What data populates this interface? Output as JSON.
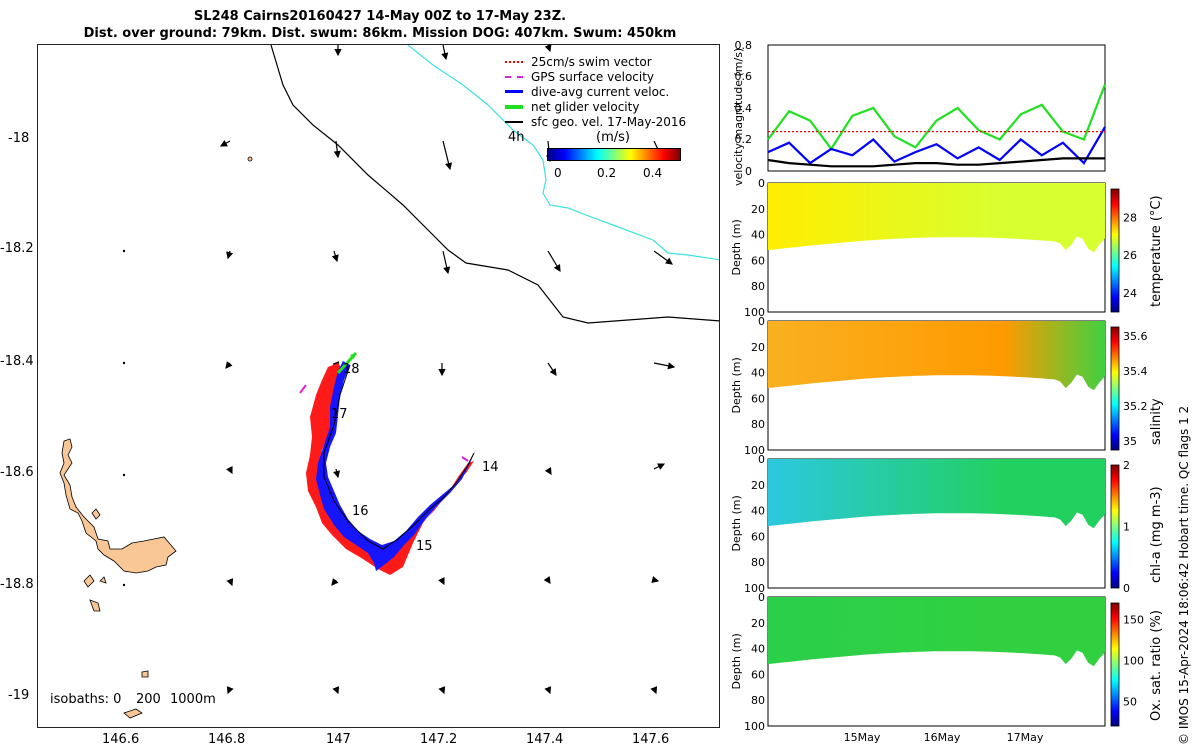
{
  "header": {
    "line1": "SL248 Cairns20160427 14-May 00Z to 17-May 23Z.",
    "line2": "Dist. over ground: 79km. Dist. swum: 86km. Mission DOG: 407km. Swum: 450km"
  },
  "map": {
    "lat_ticks": [
      "-18",
      "-18.2",
      "-18.4",
      "-18.6",
      "-18.8",
      "-19"
    ],
    "lon_ticks": [
      "146.6",
      "146.8",
      "147",
      "147.2",
      "147.4",
      "147.6"
    ],
    "isobaths_label": "isobaths: 0",
    "isobaths_200": "200",
    "isobaths_1000": "1000m",
    "time_4h": "4h",
    "day_labels": [
      "18",
      "17",
      "14",
      "16",
      "15"
    ],
    "legend": {
      "swim": "25cm/s swim vector",
      "gps": "GPS surface velocity",
      "dive": "dive-avg current veloc.",
      "net": "net glider velocity",
      "sfc": "sfc geo. vel. 17-May-2016"
    },
    "cbar_title": "(m/s)",
    "cbar_ticks": [
      "0",
      "0.2",
      "0.4"
    ],
    "colors": {
      "land": "#f9c796",
      "shelf": "#000000",
      "contour": "#3ee0e0",
      "dive": "#0000ff",
      "swim": "#ff0000",
      "gps": "#e020e0",
      "net": "#20e020"
    }
  },
  "panels": {
    "velocity_ylabel": "velocity magnitude (m/s)",
    "velocity_ticks": [
      "0",
      "0.2",
      "0.4",
      "0.6",
      "0.8"
    ],
    "depth_ylabel": "Depth (m)",
    "depth_ticks": [
      "0",
      "20",
      "40",
      "60",
      "80",
      "100"
    ],
    "temperature": {
      "label": "temperature (°C)",
      "ticks": [
        "24",
        "26",
        "28"
      ]
    },
    "salinity": {
      "label": "salinity",
      "ticks": [
        "35",
        "35.2",
        "35.4",
        "35.6"
      ]
    },
    "chla": {
      "label": "chl-a (mg m-3)",
      "ticks": [
        "0",
        "1",
        "2"
      ]
    },
    "oxygen": {
      "label": "Ox. sat. ratio (%)",
      "ticks": [
        "50",
        "100",
        "150"
      ]
    },
    "date_ticks": [
      "15May",
      "16May",
      "17May"
    ],
    "imos_footer": "© IMOS 15-Apr-2024 18:06:42 Hobart time. QC flags 1  2"
  },
  "chart_data": [
    {
      "type": "line",
      "ylabel": "velocity magnitude (m/s)",
      "ylim": [
        0,
        0.8
      ],
      "x": [
        0,
        0.25,
        0.5,
        0.75,
        1,
        1.25,
        1.5,
        1.75,
        2,
        2.25,
        2.5,
        2.75,
        3,
        3.25,
        3.5,
        3.75,
        4
      ],
      "series": [
        {
          "name": "net glider velocity",
          "color": "#20e020",
          "values": [
            0.2,
            0.38,
            0.32,
            0.14,
            0.35,
            0.4,
            0.22,
            0.15,
            0.32,
            0.4,
            0.26,
            0.2,
            0.36,
            0.42,
            0.25,
            0.2,
            0.55
          ]
        },
        {
          "name": "dive-avg current veloc.",
          "color": "#0000ff",
          "values": [
            0.12,
            0.18,
            0.05,
            0.14,
            0.1,
            0.2,
            0.06,
            0.12,
            0.17,
            0.08,
            0.15,
            0.07,
            0.2,
            0.1,
            0.18,
            0.05,
            0.28
          ]
        },
        {
          "name": "25cm/s swim vector",
          "color": "#ff0000",
          "values": [
            0.25,
            0.25,
            0.25,
            0.25,
            0.25,
            0.25,
            0.25,
            0.25,
            0.25,
            0.25,
            0.25,
            0.25,
            0.25,
            0.25,
            0.25,
            0.25,
            0.25
          ]
        },
        {
          "name": "sfc geo. vel. 17-May-2016",
          "color": "#000000",
          "values": [
            0.07,
            0.05,
            0.04,
            0.03,
            0.03,
            0.03,
            0.04,
            0.05,
            0.05,
            0.04,
            0.04,
            0.05,
            0.06,
            0.07,
            0.08,
            0.08,
            0.08
          ]
        }
      ]
    },
    {
      "type": "heatmap",
      "label": "temperature (°C)",
      "clim": [
        23,
        29.5
      ],
      "typical": 27.5,
      "ylim": [
        0,
        100
      ]
    },
    {
      "type": "heatmap",
      "label": "salinity",
      "clim": [
        34.95,
        35.65
      ],
      "typical": 35.45,
      "ylim": [
        0,
        100
      ]
    },
    {
      "type": "heatmap",
      "label": "chl-a (mg m-3)",
      "clim": [
        0,
        2
      ],
      "typical": 0.8,
      "ylim": [
        0,
        100
      ]
    },
    {
      "type": "heatmap",
      "label": "Ox. sat. ratio (%)",
      "clim": [
        20,
        170
      ],
      "typical": 105,
      "ylim": [
        0,
        100
      ]
    }
  ]
}
